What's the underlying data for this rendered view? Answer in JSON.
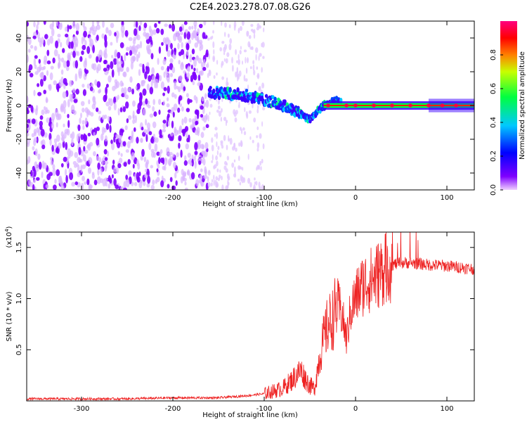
{
  "figure": {
    "title": "C2E4.2023.278.07.08.G26"
  },
  "chart_data": [
    {
      "type": "heatmap",
      "name": "spectrogram",
      "title": "C2E4.2023.278.07.08.G26",
      "xlabel": "Height of straight line (km)",
      "ylabel": "Frequency (Hz)",
      "xlim": [
        -360,
        130
      ],
      "ylim": [
        -50,
        50
      ],
      "xticks": [
        -300,
        -200,
        -100,
        0,
        100
      ],
      "yticks": [
        -40,
        -20,
        0,
        20,
        40
      ],
      "colorbar": {
        "label": "Normalized spectral amplitude",
        "range": [
          0,
          1
        ],
        "ticks": [
          "0.0",
          "0.2",
          "0.4",
          "0.6",
          "0.8"
        ],
        "colors": [
          "#f0d0ff",
          "#7f00ff",
          "#0000ff",
          "#00c8ff",
          "#00ff40",
          "#c8ff00",
          "#ff8000",
          "#ff0000",
          "#ff0080"
        ]
      },
      "features": {
        "noise_region_km": [
          -360,
          -162
        ],
        "faint_region_km": [
          -162,
          -100
        ],
        "signal_start_km": -160,
        "signal_track": [
          {
            "x": -160,
            "y": 8
          },
          {
            "x": -120,
            "y": 6
          },
          {
            "x": -90,
            "y": 2
          },
          {
            "x": -70,
            "y": -2
          },
          {
            "x": -50,
            "y": -8
          },
          {
            "x": -35,
            "y": 0
          },
          {
            "x": -22,
            "y": 3
          },
          {
            "x": -10,
            "y": 0
          },
          {
            "x": 0,
            "y": 0
          },
          {
            "x": 130,
            "y": 1
          }
        ]
      }
    },
    {
      "type": "line",
      "name": "snr",
      "xlabel": "Height of straight line (km)",
      "ylabel": "SNR (10 * v/v)",
      "yscale_label": "(x10",
      "yscale_exp": "4",
      "xlim": [
        -360,
        130
      ],
      "ylim": [
        0,
        1.65
      ],
      "xticks": [
        -300,
        -200,
        -100,
        0,
        100
      ],
      "yticks": [
        "0.5",
        "1.0",
        "1.5"
      ],
      "series": [
        {
          "color": "#ee2222",
          "x": [
            -360,
            -300,
            -250,
            -200,
            -150,
            -120,
            -100,
            -80,
            -70,
            -60,
            -55,
            -50,
            -45,
            -40,
            -35,
            -30,
            -25,
            -20,
            -15,
            -10,
            -5,
            0,
            5,
            10,
            20,
            30,
            40,
            50,
            60,
            80,
            100,
            120,
            130
          ],
          "y": [
            0.02,
            0.02,
            0.02,
            0.03,
            0.03,
            0.05,
            0.07,
            0.12,
            0.2,
            0.3,
            0.22,
            0.15,
            0.12,
            0.4,
            0.6,
            0.75,
            0.8,
            0.95,
            0.85,
            0.6,
            0.9,
            1.0,
            1.1,
            1.15,
            1.2,
            1.28,
            1.33,
            1.35,
            1.35,
            1.33,
            1.32,
            1.3,
            1.29
          ]
        }
      ]
    }
  ]
}
